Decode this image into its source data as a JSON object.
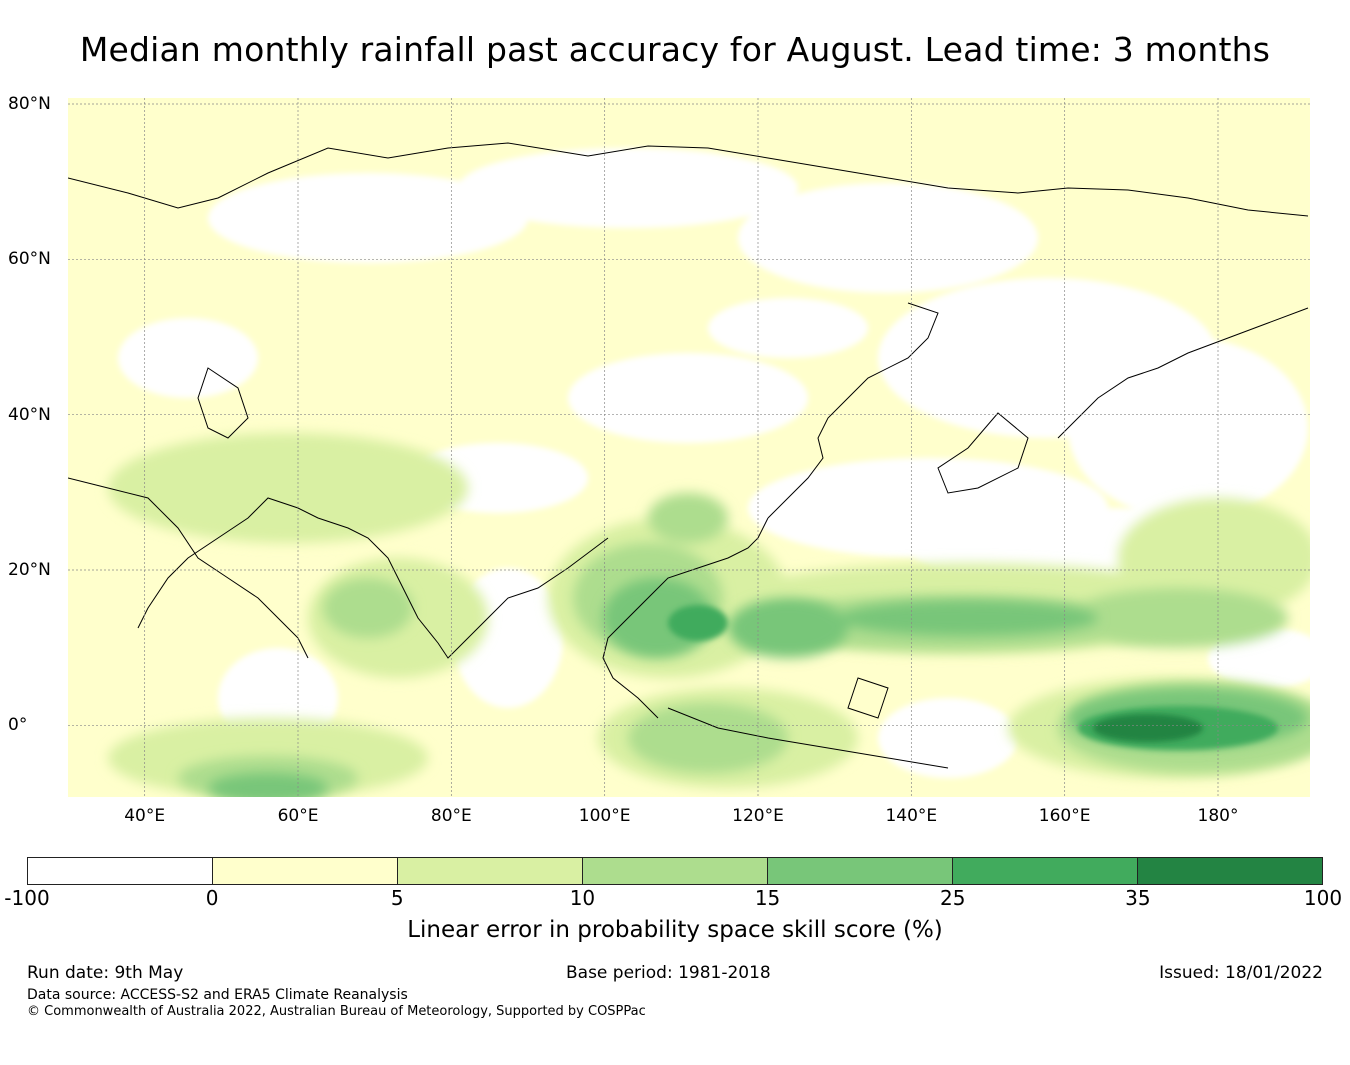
{
  "title": "Median monthly rainfall past accuracy for August. Lead time: 3 months",
  "map": {
    "projection": "equirectangular",
    "region": "Asia and western Pacific",
    "lat_range": [
      -10,
      80
    ],
    "lon_range": [
      30,
      192
    ],
    "lat_labels": [
      "80°N",
      "60°N",
      "40°N",
      "20°N",
      "0°"
    ],
    "lat_values": [
      80,
      60,
      40,
      20,
      0
    ],
    "lon_labels": [
      "40°E",
      "60°E",
      "80°E",
      "100°E",
      "120°E",
      "140°E",
      "160°E",
      "180°"
    ],
    "lon_values": [
      40,
      60,
      80,
      100,
      120,
      140,
      160,
      180
    ],
    "gridlines": true
  },
  "colorbar": {
    "bounds": [
      "-100",
      "0",
      "5",
      "10",
      "15",
      "25",
      "35",
      "100"
    ],
    "colors": [
      "#ffffff",
      "#ffffcc",
      "#d9f0a3",
      "#addd8e",
      "#78c679",
      "#41ab5d",
      "#238443"
    ],
    "label": "Linear error in probability space skill score (%)"
  },
  "footer": {
    "run_date": "Run date: 9th May",
    "base_period": "Base period: 1981-2018",
    "issued": "Issued: 18/01/2022",
    "data_source": "Data source: ACCESS-S2 and ERA5 Climate Reanalysis",
    "copyright": "© Commonwealth of Australia 2022, Australian Bureau of Meteorology, Supported by COSPPac"
  }
}
